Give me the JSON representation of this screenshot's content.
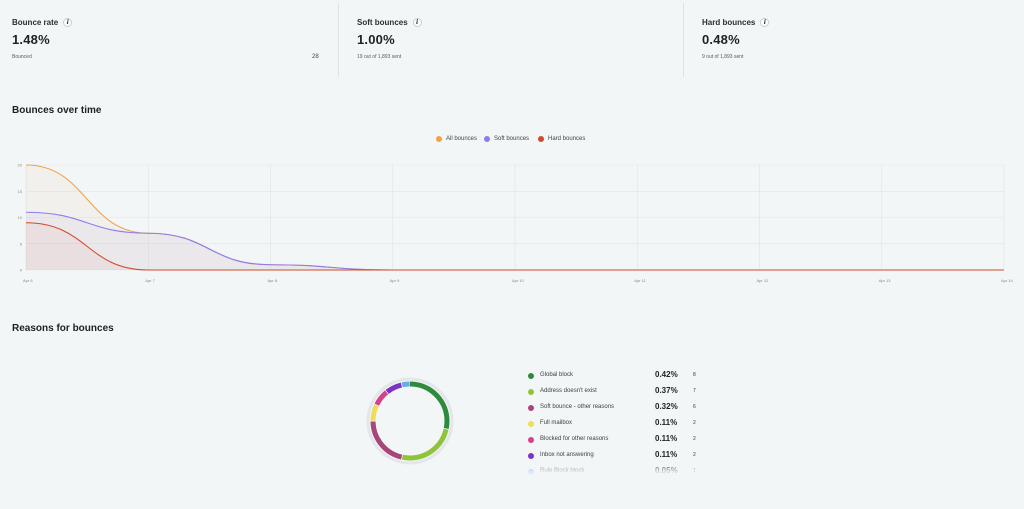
{
  "stats": [
    {
      "label": "Bounce rate",
      "value": "1.48%",
      "sub": "Bounced",
      "count": "28"
    },
    {
      "label": "Soft bounces",
      "value": "1.00%",
      "sub": "19 out of 1,893 sent",
      "count": ""
    },
    {
      "label": "Hard bounces",
      "value": "0.48%",
      "sub": "9 out of 1,893 sent",
      "count": ""
    }
  ],
  "info_icon": "i",
  "sections": {
    "over_time_title": "Bounces over time",
    "reasons_title": "Reasons for bounces"
  },
  "chart_data": {
    "type": "line",
    "x": [
      "Apr 6",
      "Apr 7",
      "Apr 8",
      "Apr 9",
      "Apr 10",
      "Apr 11",
      "Apr 12",
      "Apr 13",
      "Apr 14"
    ],
    "y_ticks": [
      "0",
      "5",
      "10",
      "15",
      "20"
    ],
    "ylim": [
      0,
      20
    ],
    "grid": true,
    "legend_position": "top-center",
    "series": [
      {
        "name": "All bounces",
        "color": "#f2a14a",
        "values": [
          20,
          7,
          1,
          0,
          0,
          0,
          0,
          0,
          0
        ]
      },
      {
        "name": "Soft bounces",
        "color": "#8d7cf0",
        "values": [
          11,
          7,
          1,
          0,
          0,
          0,
          0,
          0,
          0
        ]
      },
      {
        "name": "Hard bounces",
        "color": "#d24a2a",
        "values": [
          9,
          0,
          0,
          0,
          0,
          0,
          0,
          0,
          0
        ]
      }
    ]
  },
  "reasons": [
    {
      "label": "Global block",
      "pct": "0.42%",
      "count": "8",
      "color": "#2e8b3d",
      "value": 8
    },
    {
      "label": "Address doesn't exist",
      "pct": "0.37%",
      "count": "7",
      "color": "#8fc43a",
      "value": 7
    },
    {
      "label": "Soft bounce - other reasons",
      "pct": "0.32%",
      "count": "6",
      "color": "#a8457a",
      "value": 6
    },
    {
      "label": "Full mailbox",
      "pct": "0.11%",
      "count": "2",
      "color": "#f0dc5a",
      "value": 2
    },
    {
      "label": "Blocked for other reasons",
      "pct": "0.11%",
      "count": "2",
      "color": "#d6408c",
      "value": 2
    },
    {
      "label": "Inbox not answering",
      "pct": "0.11%",
      "count": "2",
      "color": "#7a33c2",
      "value": 2
    },
    {
      "label": "Rule Block block",
      "pct": "0.05%",
      "count": "1",
      "color": "#6aa8e8",
      "value": 1
    }
  ]
}
